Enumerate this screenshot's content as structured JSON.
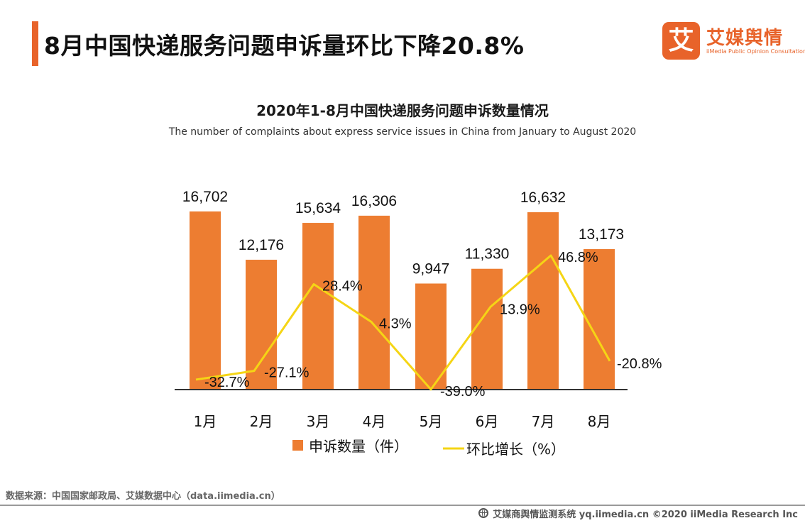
{
  "header": {
    "title": "8月中国快递服务问题申诉量环比下降20.8%"
  },
  "logo": {
    "mark": "艾",
    "name": "艾媒舆情",
    "tagline": "iiMedia Public Opinion Consultation"
  },
  "colors": {
    "accent": "#e8632a",
    "bar": "#ed7d31",
    "line": "#f5d515",
    "axis": "#333333"
  },
  "chart_data": {
    "type": "bar",
    "title": "2020年1-8月中国快递服务问题申诉数量情况",
    "subtitle": "The number of complaints about express service issues in China from January to August 2020",
    "categories": [
      "1月",
      "2月",
      "3月",
      "4月",
      "5月",
      "6月",
      "7月",
      "8月"
    ],
    "series": [
      {
        "name": "申诉数量（件）",
        "type": "bar",
        "axis": "left",
        "values": [
          16702,
          12176,
          15634,
          16306,
          9947,
          11330,
          16632,
          13173
        ],
        "labels": [
          "16,702",
          "12,176",
          "15,634",
          "16,306",
          "9,947",
          "11,330",
          "16,632",
          "13,173"
        ]
      },
      {
        "name": "环比增长（%）",
        "type": "line",
        "axis": "right",
        "values": [
          -32.7,
          -27.1,
          28.4,
          4.3,
          -39.0,
          13.9,
          46.8,
          -20.8
        ],
        "labels": [
          "-32.7%",
          "-27.1%",
          "28.4%",
          "4.3%",
          "-39.0%",
          "13.9%",
          "46.8%",
          "-20.8%"
        ]
      }
    ],
    "legend_position": "bottom",
    "grid": false
  },
  "source": "数据来源：中国国家邮政局、艾媒数据中心（data.iimedia.cn）",
  "footer": "艾媒商舆情监测系统 yq.iimedia.cn  ©2020  iiMedia Research  Inc"
}
